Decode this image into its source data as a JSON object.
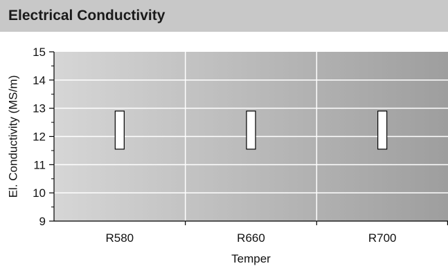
{
  "header": {
    "title": "Electrical Conductivity"
  },
  "chart_data": {
    "type": "bar",
    "subtype": "range",
    "title": "Electrical Conductivity",
    "xlabel": "Temper",
    "ylabel": "El. Conductivity (MS/m)",
    "categories": [
      "R580",
      "R660",
      "R700"
    ],
    "series": [
      {
        "low": [
          11.55,
          11.55,
          11.55
        ],
        "high": [
          12.9,
          12.9,
          12.9
        ]
      }
    ],
    "ylim": [
      9,
      15
    ],
    "yticks": [
      9,
      10,
      11,
      12,
      13,
      14,
      15
    ],
    "grid": true,
    "colors": {
      "bar_fill": "#ffffff",
      "bar_stroke": "#000000",
      "gridline": "#ffffff",
      "plot_bg_left": "#d6d6d6",
      "plot_bg_right": "#9e9e9e",
      "header_bg": "#c8c8c8"
    }
  }
}
